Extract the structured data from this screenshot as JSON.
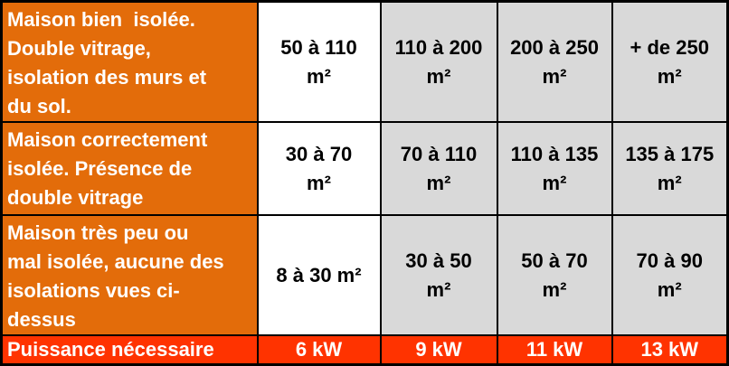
{
  "chart_data": {
    "type": "table",
    "description": "Tableau des surfaces chauffables selon l'isolation de la maison et la puissance nécessaire",
    "rows": [
      {
        "label": "Maison bien  isolée.\nDouble vitrage,\nisolation des murs et\ndu sol.",
        "cells": [
          "50 à 110\nm²",
          "110 à 200\nm²",
          "200 à 250\nm²",
          "+ de 250\nm²"
        ]
      },
      {
        "label": "Maison correctement\nisolée. Présence de\ndouble vitrage",
        "cells": [
          "30 à 70\nm²",
          "70 à 110\nm²",
          "110 à 135\nm²",
          "135 à 175\nm²"
        ]
      },
      {
        "label": "Maison très peu ou\nmal isolée, aucune des\nisolations vues ci-\ndessus",
        "cells": [
          "8 à 30 m²",
          "30 à 50\nm²",
          "50 à 70\nm²",
          "70 à 90\nm²"
        ]
      }
    ],
    "footer": {
      "label": "Puissance nécessaire",
      "cells": [
        "6 kW",
        "9 kW",
        "11 kW",
        "13 kW"
      ],
      "power_kw": [
        6,
        9,
        11,
        13
      ]
    },
    "unit_surface": "m²",
    "unit_power": "kW"
  },
  "colors": {
    "label_bg": "#E36C0A",
    "label_text": "#FFFFFF",
    "data_bg_first_column": "#FFFFFF",
    "data_bg": "#D9D9D9",
    "data_text": "#000000",
    "footer_bg": "#FF3300",
    "footer_text": "#FFFFFF",
    "border": "#000000"
  }
}
